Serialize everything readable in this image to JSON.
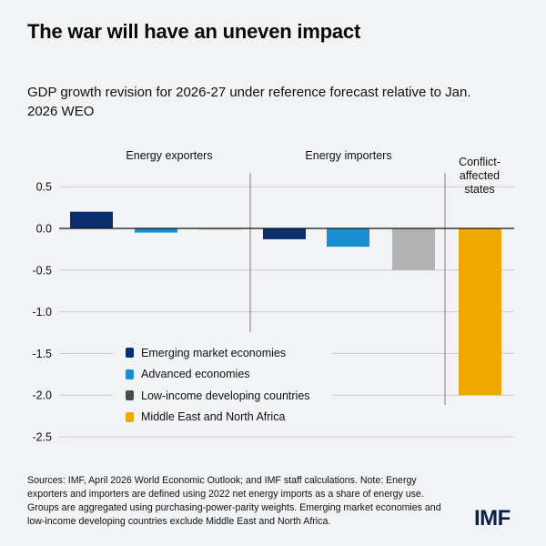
{
  "header": {
    "title": "The war will have an uneven impact",
    "subtitle": "GDP growth revision for 2026-27 under reference forecast relative to Jan. 2026 WEO"
  },
  "footer": {
    "note": "Sources: IMF, April 2026 World Economic Outlook; and IMF staff calculations. Note: Energy exporters and importers are defined using 2022 net energy imports as a share of energy use. Groups are aggregated using purchasing-power-parity weights. Emerging market economies and low-income developing countries exclude Middle East and North Africa.",
    "logo": "IMF"
  },
  "chart_data": {
    "type": "bar",
    "title": "GDP growth revision for 2026-27 under reference forecast relative to Jan. 2026 WEO",
    "xlabel": "",
    "ylabel": "",
    "ylim": [
      -2.5,
      0.5
    ],
    "yticks": [
      0.5,
      0.0,
      -0.5,
      -1.0,
      -1.5,
      -2.0,
      -2.5
    ],
    "ytick_labels": [
      "0.5",
      "0.0",
      "-0.5",
      "-1.0",
      "-1.5",
      "-2.0",
      "-2.5"
    ],
    "grid": true,
    "legend_position": "bottom-left",
    "groups": [
      {
        "label": "Energy exporters",
        "label_lines": [
          "Energy exporters"
        ]
      },
      {
        "label": "Energy importers",
        "label_lines": [
          "Energy importers"
        ]
      },
      {
        "label": "Conflict-affected states",
        "label_lines": [
          "Conflict-",
          "affected",
          "states"
        ]
      }
    ],
    "series": [
      {
        "name": "Emerging market economies",
        "color": "#0b2f6e"
      },
      {
        "name": "Advanced economies",
        "color": "#1a8fd0"
      },
      {
        "name": "Low-income developing countries",
        "color": "#b1b2b1",
        "legend_color": "#4b4c4c"
      },
      {
        "name": "Middle East and North Africa",
        "color": "#eda900"
      }
    ],
    "bars": [
      {
        "group": 0,
        "series": 0,
        "value": 0.2
      },
      {
        "group": 0,
        "series": 1,
        "value": -0.05
      },
      {
        "group": 0,
        "series": 2,
        "value": -0.01
      },
      {
        "group": 1,
        "series": 0,
        "value": -0.13
      },
      {
        "group": 1,
        "series": 1,
        "value": -0.22
      },
      {
        "group": 1,
        "series": 2,
        "value": -0.5
      },
      {
        "group": 2,
        "series": 3,
        "value": -2.0
      }
    ]
  }
}
